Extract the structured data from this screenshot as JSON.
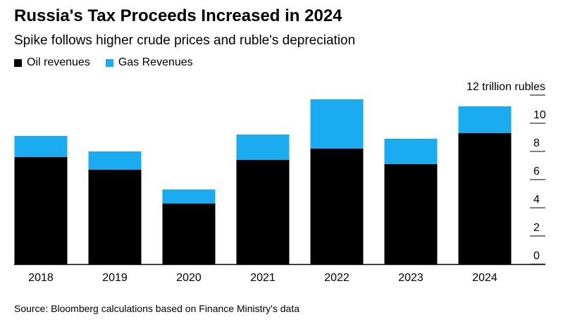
{
  "title": "Russia's Tax Proceeds Increased in 2024",
  "subtitle": "Spike follows higher crude prices and ruble's depreciation",
  "source": "Source: Bloomberg calculations based on Finance Ministry's data",
  "colors": {
    "oil": "#000000",
    "gas": "#1aabf0",
    "grid": "#000000"
  },
  "chart_data": {
    "type": "bar",
    "stacked": true,
    "title": "Russia's Tax Proceeds Increased in 2024",
    "subtitle": "Spike follows higher crude prices and ruble's depreciation",
    "categories": [
      "2018",
      "2019",
      "2020",
      "2021",
      "2022",
      "2023",
      "2024"
    ],
    "series": [
      {
        "name": "Oil revenues",
        "values": [
          7.6,
          6.7,
          4.3,
          7.4,
          8.2,
          7.1,
          9.3
        ]
      },
      {
        "name": "Gas Revenues",
        "values": [
          1.5,
          1.3,
          1.0,
          1.8,
          3.5,
          1.8,
          1.9
        ]
      }
    ],
    "ylim": [
      0,
      12
    ],
    "yticks": [
      0,
      2,
      4,
      6,
      8,
      10,
      12
    ],
    "ytick_labels": [
      "0",
      "2",
      "4",
      "6",
      "8",
      "10",
      "12 trillion rubles"
    ],
    "ylabel": "",
    "xlabel": "",
    "legend_position": "top-left",
    "grid": true
  }
}
